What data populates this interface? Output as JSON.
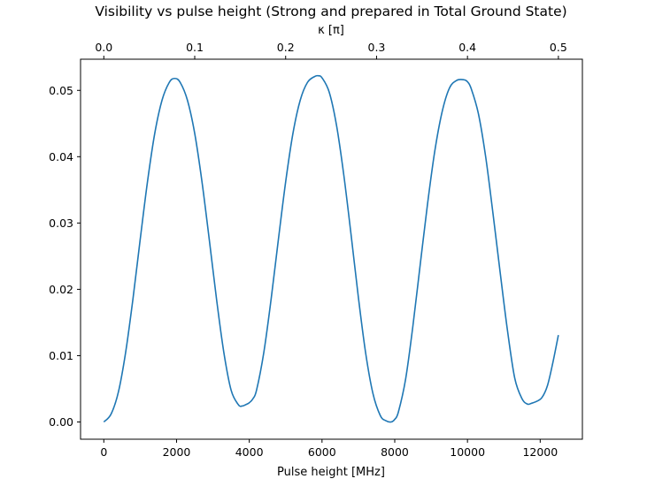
{
  "chart_data": {
    "type": "line",
    "title": "Visibility vs pulse height (Strong and prepared in Total Ground State)",
    "xlabel": "Pulse height [MHz]",
    "ylabel": "",
    "top_xlabel": "κ [π]",
    "xlim": [
      -640,
      13160
    ],
    "ylim": [
      -0.0026,
      0.0547
    ],
    "xticks": [
      0,
      2000,
      4000,
      6000,
      8000,
      10000,
      12000
    ],
    "xtick_labels": [
      "0",
      "2000",
      "4000",
      "6000",
      "8000",
      "10000",
      "12000"
    ],
    "yticks": [
      0.0,
      0.01,
      0.02,
      0.03,
      0.04,
      0.05
    ],
    "ytick_labels": [
      "0.00",
      "0.01",
      "0.02",
      "0.03",
      "0.04",
      "0.05"
    ],
    "top_xticks": [
      0.0,
      0.1,
      0.2,
      0.3,
      0.4,
      0.5
    ],
    "top_xtick_labels": [
      "0.0",
      "0.1",
      "0.2",
      "0.3",
      "0.4",
      "0.5"
    ],
    "top_xlim": [
      0.0,
      0.5
    ],
    "grid": false,
    "series": [
      {
        "color": "#1f77b4",
        "x": [
          0,
          200,
          400,
          600,
          800,
          1000,
          1200,
          1400,
          1600,
          1800,
          1950,
          2100,
          2300,
          2500,
          2700,
          2900,
          3100,
          3300,
          3500,
          3700,
          3800,
          3900,
          4000,
          4100,
          4200,
          4400,
          4600,
          4800,
          5000,
          5200,
          5400,
          5600,
          5800,
          5900,
          6000,
          6200,
          6400,
          6600,
          6800,
          7000,
          7200,
          7400,
          7600,
          7750,
          7900,
          8000,
          8100,
          8300,
          8500,
          8700,
          8900,
          9100,
          9300,
          9500,
          9700,
          9900,
          10000,
          10100,
          10300,
          10500,
          10700,
          10900,
          11100,
          11300,
          11500,
          11650,
          11750,
          11900,
          12050,
          12200,
          12350,
          12500
        ],
        "values": [
          0.0,
          0.0012,
          0.0045,
          0.0105,
          0.0185,
          0.0275,
          0.0362,
          0.0435,
          0.0485,
          0.0512,
          0.0518,
          0.0512,
          0.0485,
          0.0435,
          0.0362,
          0.0275,
          0.0185,
          0.0105,
          0.0048,
          0.0026,
          0.0024,
          0.0026,
          0.0029,
          0.0035,
          0.0048,
          0.0105,
          0.0185,
          0.0275,
          0.0362,
          0.0435,
          0.0485,
          0.0512,
          0.0521,
          0.0522,
          0.0519,
          0.0497,
          0.0447,
          0.0372,
          0.0282,
          0.0188,
          0.0104,
          0.0043,
          0.001,
          0.0002,
          0.0,
          0.0004,
          0.0015,
          0.0065,
          0.0145,
          0.0237,
          0.0328,
          0.0408,
          0.0467,
          0.0503,
          0.0515,
          0.0516,
          0.0513,
          0.0503,
          0.0465,
          0.04,
          0.0315,
          0.0225,
          0.0138,
          0.0066,
          0.0035,
          0.0027,
          0.0028,
          0.0031,
          0.0037,
          0.0055,
          0.009,
          0.0131
        ]
      }
    ]
  }
}
